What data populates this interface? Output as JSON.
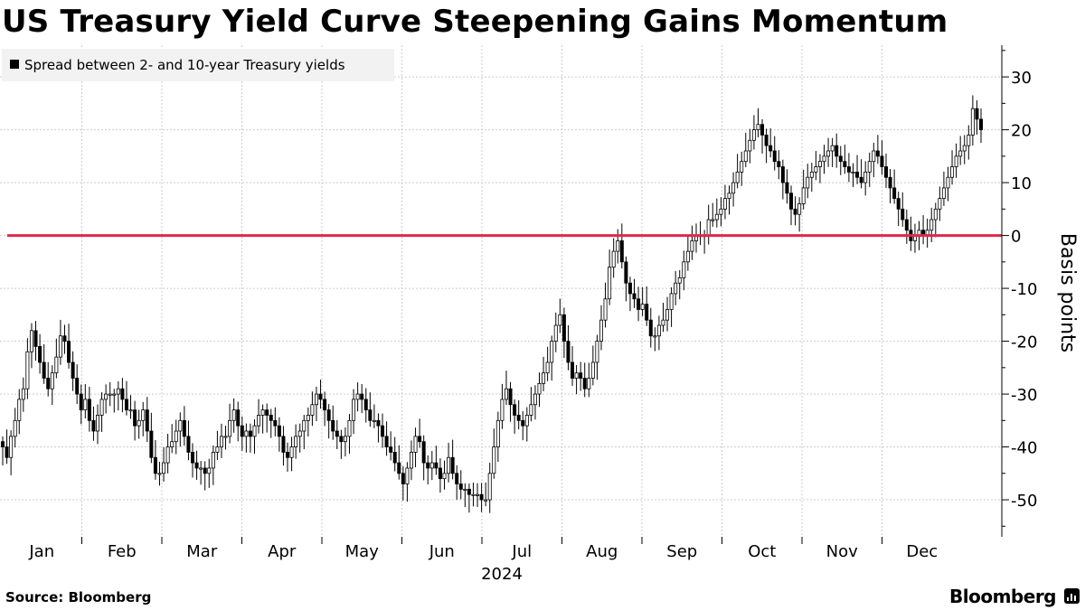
{
  "title": "US Treasury Yield Curve Steepening Gains Momentum",
  "source": "Source: Bloomberg",
  "brand": "Bloomberg",
  "chart_data": {
    "type": "candlestick",
    "year_label": "2024",
    "legend": {
      "label": "Spread between 2- and 10-year Treasury yields",
      "placement": "top-left"
    },
    "ylabel": "Basis points",
    "ylim": [
      -57,
      36
    ],
    "yticks": [
      -50,
      -40,
      -30,
      -20,
      -10,
      0,
      10,
      20,
      30
    ],
    "grid": true,
    "months": [
      "Jan",
      "Feb",
      "Mar",
      "Apr",
      "May",
      "Jun",
      "Jul",
      "Aug",
      "Sep",
      "Oct",
      "Nov",
      "Dec"
    ],
    "reference_line": {
      "value": 0,
      "color": "#e0284a"
    },
    "colors": {
      "candle": "#000000",
      "grid": "#cccccc",
      "legend_bg": "#f2f2f2"
    },
    "daily_close": [
      -40,
      -42,
      -38,
      -35,
      -31,
      -29,
      -22,
      -18,
      -21,
      -24,
      -27,
      -29,
      -26,
      -23,
      -19,
      -20,
      -24,
      -27,
      -30,
      -33,
      -31,
      -35,
      -37,
      -34,
      -31,
      -30,
      -30,
      -30,
      -29,
      -31,
      -33,
      -33,
      -36,
      -35,
      -33,
      -37,
      -42,
      -45,
      -45,
      -43,
      -40,
      -39,
      -37,
      -35,
      -38,
      -41,
      -43,
      -44,
      -44,
      -45,
      -44,
      -41,
      -40,
      -38,
      -38,
      -35,
      -33,
      -36,
      -38,
      -37,
      -38,
      -36,
      -34,
      -33,
      -34,
      -35,
      -36,
      -38,
      -41,
      -42,
      -40,
      -38,
      -37,
      -35,
      -34,
      -32,
      -30,
      -31,
      -33,
      -35,
      -37,
      -38,
      -39,
      -38,
      -35,
      -31,
      -30,
      -31,
      -33,
      -35,
      -35,
      -36,
      -38,
      -40,
      -41,
      -43,
      -45,
      -47,
      -44,
      -41,
      -38,
      -39,
      -43,
      -44,
      -43,
      -44,
      -46,
      -45,
      -42,
      -45,
      -47,
      -48,
      -48,
      -49,
      -49,
      -49,
      -50,
      -50,
      -45,
      -40,
      -35,
      -31,
      -29,
      -32,
      -34,
      -35,
      -36,
      -34,
      -32,
      -30,
      -28,
      -26,
      -24,
      -20,
      -17,
      -15,
      -20,
      -24,
      -27,
      -26,
      -27,
      -29,
      -27,
      -24,
      -20,
      -16,
      -12,
      -6,
      -3,
      -1,
      -5,
      -9,
      -11,
      -12,
      -14,
      -13,
      -16,
      -19,
      -19,
      -17,
      -16,
      -14,
      -11,
      -9,
      -8,
      -5,
      -3,
      -1,
      0,
      0,
      0,
      3,
      3,
      4,
      5,
      7,
      8,
      10,
      12,
      14,
      16,
      18,
      20,
      21,
      19,
      17,
      16,
      14,
      13,
      10,
      8,
      5,
      4,
      6,
      9,
      11,
      12,
      13,
      14,
      15,
      16,
      17,
      15,
      14,
      13,
      12,
      12,
      11,
      10,
      12,
      14,
      16,
      15,
      13,
      11,
      9,
      7,
      5,
      3,
      1,
      -1,
      0,
      1,
      0,
      1,
      3,
      5,
      7,
      9,
      11,
      13,
      15,
      16,
      17,
      19,
      24,
      22,
      20
    ]
  }
}
